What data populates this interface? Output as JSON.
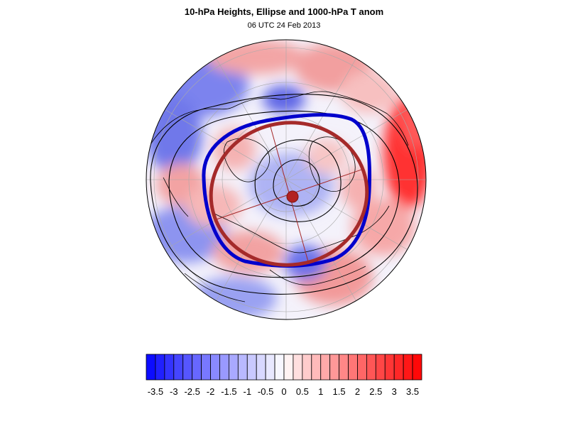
{
  "header": {
    "title": "10-hPa Heights, Ellipse and 1000-hPa T anom",
    "subtitle": "06 UTC 24 Feb 2013"
  },
  "map": {
    "projection": "polar-stereographic-north",
    "height_contour_color": "#000000",
    "ellipse_color": "#a52a2a",
    "vortex_edge_color": "#0000cc",
    "center_marker_color": "#b22222"
  },
  "colorbar": {
    "min": -3.75,
    "max": 3.75,
    "step": 0.25,
    "min_color": "#0000ff",
    "mid_color": "#ffffff",
    "max_color": "#ff0000",
    "tick_labels": [
      "-3.5",
      "-3",
      "-2.5",
      "-2",
      "-1.5",
      "-1",
      "-0.5",
      "0",
      "0.5",
      "1",
      "1.5",
      "2",
      "2.5",
      "3",
      "3.5"
    ]
  }
}
